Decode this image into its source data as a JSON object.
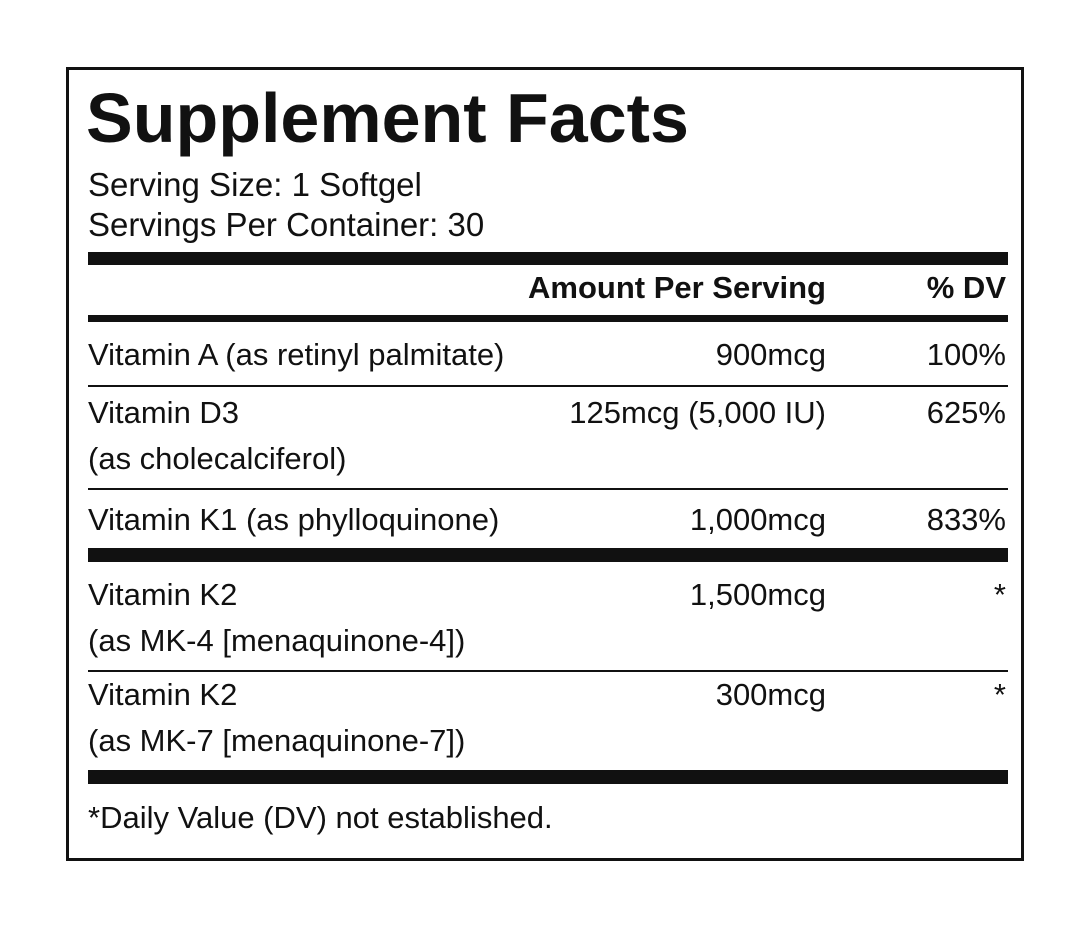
{
  "title": "Supplement Facts",
  "serving_size": "Serving Size: 1 Softgel",
  "servings_per_container": "Servings Per Container: 30",
  "header": {
    "amount": "Amount Per Serving",
    "dv": "% DV"
  },
  "rows": [
    {
      "name": [
        "Vitamin A (as retinyl palmitate)"
      ],
      "amount": "900mcg",
      "dv": "100%"
    },
    {
      "name": [
        "Vitamin D3",
        "(as cholecalciferol)"
      ],
      "amount": "125mcg (5,000 IU)",
      "dv": "625%"
    },
    {
      "name": [
        "Vitamin K1 (as phylloquinone)"
      ],
      "amount": "1,000mcg",
      "dv": "833%"
    },
    {
      "name": [
        "Vitamin K2",
        "(as MK-4 [menaquinone-4])"
      ],
      "amount": "1,500mcg",
      "dv": "*"
    },
    {
      "name": [
        "Vitamin K2",
        "(as MK-7 [menaquinone-7])"
      ],
      "amount": "300mcg",
      "dv": "*"
    }
  ],
  "footnote": "*Daily Value (DV) not established."
}
